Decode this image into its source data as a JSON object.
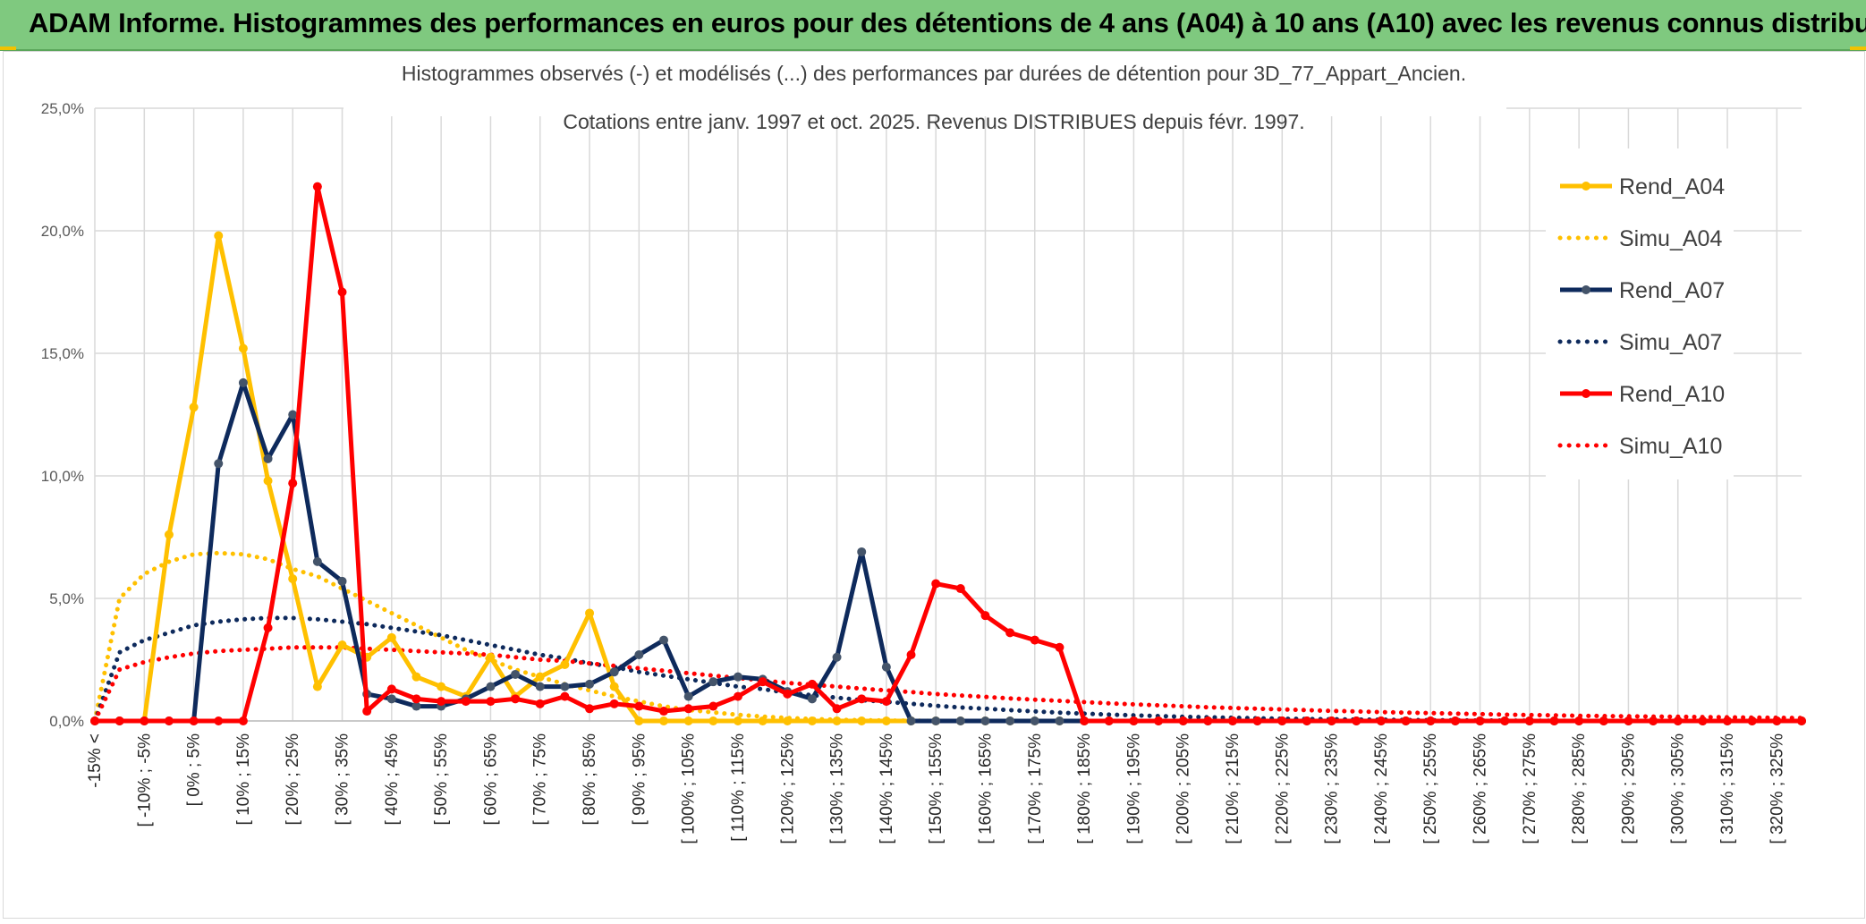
{
  "banner": {
    "title": "ADAM Informe. Histogrammes des performances en euros pour des détentions de 4 ans (A04) à 10 ans (A10) avec les revenus connus distribués"
  },
  "chart_data": {
    "type": "line",
    "title": "Histogrammes observés (-) et modélisés (...) des performances par durées de détention pour 3D_77_Appart_Ancien.",
    "subtitle": "Cotations entre janv. 1997 et oct. 2025. Revenus DISTRIBUES depuis févr. 1997.",
    "xlabel": "",
    "ylabel": "",
    "ylim": [
      0,
      25
    ],
    "yticks": [
      "0,0%",
      "5,0%",
      "10,0%",
      "15,0%",
      "20,0%",
      "25,0%"
    ],
    "x_tick_labels": [
      "-15% <",
      "[ -10% ; -5%",
      "[ 0% ; 5%",
      "[ 10% ; 15%",
      "[ 20% ; 25%",
      "[ 30% ; 35%",
      "[ 40% ; 45%",
      "[ 50% ; 55%",
      "[ 60% ; 65%",
      "[ 70% ; 75%",
      "[ 80% ; 85%",
      "[ 90% ; 95%",
      "[ 100% ; 105%",
      "[ 110% ; 115%",
      "[ 120% ; 125%",
      "[ 130% ; 135%",
      "[ 140% ; 145%",
      "[ 150% ; 155%",
      "[ 160% ; 165%",
      "[ 170% ; 175%",
      "[ 180% ; 185%",
      "[ 190% ; 195%",
      "[ 200% ; 205%",
      "[ 210% ; 215%",
      "[ 220% ; 225%",
      "[ 230% ; 235%",
      "[ 240% ; 245%",
      "[ 250% ; 255%",
      "[ 260% ; 265%",
      "[ 270% ; 275%",
      "[ 280% ; 285%",
      "[ 290% ; 295%",
      "[ 300% ; 305%",
      "[ 310% ; 315%",
      "[ 320% ; 325%"
    ],
    "n_bins": 70,
    "legend_position": "right",
    "grid": true,
    "series": [
      {
        "name": "Rend_A04",
        "style": "solid",
        "color": "#ffc000",
        "values": [
          0,
          0,
          0,
          7.6,
          12.8,
          19.8,
          15.2,
          9.8,
          5.8,
          1.4,
          3.1,
          2.6,
          3.4,
          1.8,
          1.4,
          1.0,
          2.6,
          1.0,
          1.8,
          2.3,
          4.4,
          1.4,
          0,
          0,
          0,
          0,
          0,
          0,
          0,
          0,
          0,
          0,
          0,
          0,
          0,
          0,
          0,
          0,
          0,
          0,
          0,
          0,
          0,
          0,
          0,
          0,
          0,
          0,
          0,
          0,
          0,
          0,
          0,
          0,
          0,
          0,
          0,
          0,
          0,
          0,
          0,
          0,
          0,
          0,
          0,
          0,
          0,
          0,
          0,
          0
        ]
      },
      {
        "name": "Simu_A04",
        "style": "dotted",
        "color": "#ffc000",
        "values": [
          0,
          5.0,
          6.0,
          6.5,
          6.8,
          6.85,
          6.8,
          6.6,
          6.2,
          5.9,
          5.4,
          4.9,
          4.4,
          3.9,
          3.4,
          2.9,
          2.5,
          2.1,
          1.8,
          1.5,
          1.25,
          1.0,
          0.8,
          0.6,
          0.45,
          0.35,
          0.25,
          0.18,
          0.12,
          0.08,
          0.05,
          0.03,
          0.02,
          0.01,
          0,
          0,
          0,
          0,
          0,
          0,
          0,
          0,
          0,
          0,
          0,
          0,
          0,
          0,
          0,
          0,
          0,
          0,
          0,
          0,
          0,
          0,
          0,
          0,
          0,
          0,
          0,
          0,
          0,
          0,
          0,
          0,
          0,
          0,
          0,
          0
        ]
      },
      {
        "name": "Rend_A07",
        "style": "solid",
        "color": "#0e2a5c",
        "values": [
          0,
          0,
          0,
          0,
          0,
          10.5,
          13.8,
          10.7,
          12.5,
          6.5,
          5.7,
          1.1,
          0.9,
          0.6,
          0.6,
          0.9,
          1.4,
          1.9,
          1.4,
          1.4,
          1.5,
          2.0,
          2.7,
          3.3,
          1.0,
          1.6,
          1.8,
          1.7,
          1.2,
          0.9,
          2.6,
          6.9,
          2.2,
          0,
          0,
          0,
          0,
          0,
          0,
          0,
          0,
          0,
          0,
          0,
          0,
          0,
          0,
          0,
          0,
          0,
          0,
          0,
          0,
          0,
          0,
          0,
          0,
          0,
          0,
          0,
          0,
          0,
          0,
          0,
          0,
          0,
          0,
          0,
          0,
          0
        ]
      },
      {
        "name": "Simu_A07",
        "style": "dotted",
        "color": "#0e2a5c",
        "values": [
          0,
          2.8,
          3.3,
          3.6,
          3.9,
          4.05,
          4.15,
          4.2,
          4.2,
          4.15,
          4.05,
          3.95,
          3.8,
          3.65,
          3.5,
          3.3,
          3.1,
          2.9,
          2.7,
          2.55,
          2.35,
          2.2,
          2.0,
          1.85,
          1.7,
          1.55,
          1.4,
          1.3,
          1.15,
          1.05,
          0.95,
          0.85,
          0.78,
          0.7,
          0.62,
          0.55,
          0.5,
          0.44,
          0.39,
          0.34,
          0.3,
          0.26,
          0.23,
          0.2,
          0.17,
          0.15,
          0.13,
          0.11,
          0.09,
          0.08,
          0.07,
          0.06,
          0.05,
          0.04,
          0.03,
          0.03,
          0.02,
          0.02,
          0.01,
          0.01,
          0,
          0,
          0,
          0,
          0,
          0,
          0,
          0,
          0,
          0
        ]
      },
      {
        "name": "Rend_A10",
        "style": "solid",
        "color": "#ff0000",
        "values": [
          0,
          0,
          0,
          0,
          0,
          0,
          0,
          3.8,
          9.7,
          21.8,
          17.5,
          0.4,
          1.3,
          0.9,
          0.8,
          0.8,
          0.8,
          0.9,
          0.7,
          1.0,
          0.5,
          0.7,
          0.6,
          0.4,
          0.5,
          0.6,
          1.0,
          1.6,
          1.1,
          1.5,
          0.5,
          0.9,
          0.8,
          2.7,
          5.6,
          5.4,
          4.3,
          3.6,
          3.3,
          3.0,
          0,
          0,
          0,
          0,
          0,
          0,
          0,
          0,
          0,
          0,
          0,
          0,
          0,
          0,
          0,
          0,
          0,
          0,
          0,
          0,
          0,
          0,
          0,
          0,
          0,
          0,
          0,
          0,
          0,
          0
        ]
      },
      {
        "name": "Simu_A10",
        "style": "dotted",
        "color": "#ff0000",
        "values": [
          0,
          2.1,
          2.4,
          2.6,
          2.75,
          2.85,
          2.9,
          2.95,
          3.0,
          3.0,
          3.0,
          2.95,
          2.9,
          2.85,
          2.8,
          2.75,
          2.7,
          2.6,
          2.5,
          2.45,
          2.35,
          2.25,
          2.15,
          2.05,
          1.95,
          1.85,
          1.75,
          1.65,
          1.55,
          1.48,
          1.4,
          1.32,
          1.25,
          1.18,
          1.1,
          1.04,
          0.98,
          0.92,
          0.87,
          0.82,
          0.77,
          0.72,
          0.68,
          0.64,
          0.6,
          0.56,
          0.53,
          0.5,
          0.47,
          0.44,
          0.41,
          0.39,
          0.36,
          0.34,
          0.32,
          0.3,
          0.28,
          0.26,
          0.24,
          0.23,
          0.21,
          0.2,
          0.19,
          0.18,
          0.17,
          0.16,
          0.15,
          0.14,
          0.13,
          0.12
        ]
      }
    ]
  }
}
